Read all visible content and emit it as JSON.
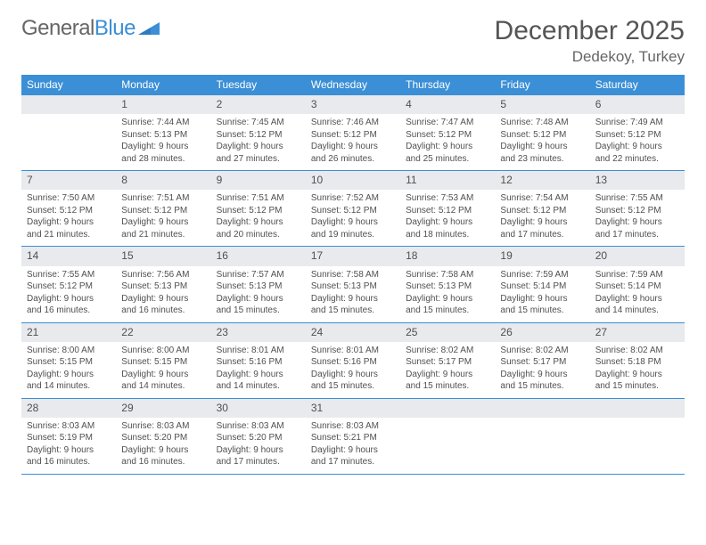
{
  "logo": {
    "part1": "General",
    "part2": "Blue"
  },
  "title": "December 2025",
  "subtitle": "Dedekoy, Turkey",
  "colors": {
    "accent": "#3b8fd6",
    "day_num_bg": "#e8eaed",
    "text_dark": "#333333",
    "text_gray": "#505050",
    "page_bg": "#ffffff"
  },
  "typography": {
    "title_fontsize": 30,
    "subtitle_fontsize": 17,
    "dow_fontsize": 12,
    "daynum_fontsize": 12,
    "body_fontsize": 10,
    "font_family": "Arial"
  },
  "days_of_week": [
    "Sunday",
    "Monday",
    "Tuesday",
    "Wednesday",
    "Thursday",
    "Friday",
    "Saturday"
  ],
  "weeks": [
    [
      null,
      {
        "n": "1",
        "sunrise": "Sunrise: 7:44 AM",
        "sunset": "Sunset: 5:13 PM",
        "d1": "Daylight: 9 hours",
        "d2": "and 28 minutes."
      },
      {
        "n": "2",
        "sunrise": "Sunrise: 7:45 AM",
        "sunset": "Sunset: 5:12 PM",
        "d1": "Daylight: 9 hours",
        "d2": "and 27 minutes."
      },
      {
        "n": "3",
        "sunrise": "Sunrise: 7:46 AM",
        "sunset": "Sunset: 5:12 PM",
        "d1": "Daylight: 9 hours",
        "d2": "and 26 minutes."
      },
      {
        "n": "4",
        "sunrise": "Sunrise: 7:47 AM",
        "sunset": "Sunset: 5:12 PM",
        "d1": "Daylight: 9 hours",
        "d2": "and 25 minutes."
      },
      {
        "n": "5",
        "sunrise": "Sunrise: 7:48 AM",
        "sunset": "Sunset: 5:12 PM",
        "d1": "Daylight: 9 hours",
        "d2": "and 23 minutes."
      },
      {
        "n": "6",
        "sunrise": "Sunrise: 7:49 AM",
        "sunset": "Sunset: 5:12 PM",
        "d1": "Daylight: 9 hours",
        "d2": "and 22 minutes."
      }
    ],
    [
      {
        "n": "7",
        "sunrise": "Sunrise: 7:50 AM",
        "sunset": "Sunset: 5:12 PM",
        "d1": "Daylight: 9 hours",
        "d2": "and 21 minutes."
      },
      {
        "n": "8",
        "sunrise": "Sunrise: 7:51 AM",
        "sunset": "Sunset: 5:12 PM",
        "d1": "Daylight: 9 hours",
        "d2": "and 21 minutes."
      },
      {
        "n": "9",
        "sunrise": "Sunrise: 7:51 AM",
        "sunset": "Sunset: 5:12 PM",
        "d1": "Daylight: 9 hours",
        "d2": "and 20 minutes."
      },
      {
        "n": "10",
        "sunrise": "Sunrise: 7:52 AM",
        "sunset": "Sunset: 5:12 PM",
        "d1": "Daylight: 9 hours",
        "d2": "and 19 minutes."
      },
      {
        "n": "11",
        "sunrise": "Sunrise: 7:53 AM",
        "sunset": "Sunset: 5:12 PM",
        "d1": "Daylight: 9 hours",
        "d2": "and 18 minutes."
      },
      {
        "n": "12",
        "sunrise": "Sunrise: 7:54 AM",
        "sunset": "Sunset: 5:12 PM",
        "d1": "Daylight: 9 hours",
        "d2": "and 17 minutes."
      },
      {
        "n": "13",
        "sunrise": "Sunrise: 7:55 AM",
        "sunset": "Sunset: 5:12 PM",
        "d1": "Daylight: 9 hours",
        "d2": "and 17 minutes."
      }
    ],
    [
      {
        "n": "14",
        "sunrise": "Sunrise: 7:55 AM",
        "sunset": "Sunset: 5:12 PM",
        "d1": "Daylight: 9 hours",
        "d2": "and 16 minutes."
      },
      {
        "n": "15",
        "sunrise": "Sunrise: 7:56 AM",
        "sunset": "Sunset: 5:13 PM",
        "d1": "Daylight: 9 hours",
        "d2": "and 16 minutes."
      },
      {
        "n": "16",
        "sunrise": "Sunrise: 7:57 AM",
        "sunset": "Sunset: 5:13 PM",
        "d1": "Daylight: 9 hours",
        "d2": "and 15 minutes."
      },
      {
        "n": "17",
        "sunrise": "Sunrise: 7:58 AM",
        "sunset": "Sunset: 5:13 PM",
        "d1": "Daylight: 9 hours",
        "d2": "and 15 minutes."
      },
      {
        "n": "18",
        "sunrise": "Sunrise: 7:58 AM",
        "sunset": "Sunset: 5:13 PM",
        "d1": "Daylight: 9 hours",
        "d2": "and 15 minutes."
      },
      {
        "n": "19",
        "sunrise": "Sunrise: 7:59 AM",
        "sunset": "Sunset: 5:14 PM",
        "d1": "Daylight: 9 hours",
        "d2": "and 15 minutes."
      },
      {
        "n": "20",
        "sunrise": "Sunrise: 7:59 AM",
        "sunset": "Sunset: 5:14 PM",
        "d1": "Daylight: 9 hours",
        "d2": "and 14 minutes."
      }
    ],
    [
      {
        "n": "21",
        "sunrise": "Sunrise: 8:00 AM",
        "sunset": "Sunset: 5:15 PM",
        "d1": "Daylight: 9 hours",
        "d2": "and 14 minutes."
      },
      {
        "n": "22",
        "sunrise": "Sunrise: 8:00 AM",
        "sunset": "Sunset: 5:15 PM",
        "d1": "Daylight: 9 hours",
        "d2": "and 14 minutes."
      },
      {
        "n": "23",
        "sunrise": "Sunrise: 8:01 AM",
        "sunset": "Sunset: 5:16 PM",
        "d1": "Daylight: 9 hours",
        "d2": "and 14 minutes."
      },
      {
        "n": "24",
        "sunrise": "Sunrise: 8:01 AM",
        "sunset": "Sunset: 5:16 PM",
        "d1": "Daylight: 9 hours",
        "d2": "and 15 minutes."
      },
      {
        "n": "25",
        "sunrise": "Sunrise: 8:02 AM",
        "sunset": "Sunset: 5:17 PM",
        "d1": "Daylight: 9 hours",
        "d2": "and 15 minutes."
      },
      {
        "n": "26",
        "sunrise": "Sunrise: 8:02 AM",
        "sunset": "Sunset: 5:17 PM",
        "d1": "Daylight: 9 hours",
        "d2": "and 15 minutes."
      },
      {
        "n": "27",
        "sunrise": "Sunrise: 8:02 AM",
        "sunset": "Sunset: 5:18 PM",
        "d1": "Daylight: 9 hours",
        "d2": "and 15 minutes."
      }
    ],
    [
      {
        "n": "28",
        "sunrise": "Sunrise: 8:03 AM",
        "sunset": "Sunset: 5:19 PM",
        "d1": "Daylight: 9 hours",
        "d2": "and 16 minutes."
      },
      {
        "n": "29",
        "sunrise": "Sunrise: 8:03 AM",
        "sunset": "Sunset: 5:20 PM",
        "d1": "Daylight: 9 hours",
        "d2": "and 16 minutes."
      },
      {
        "n": "30",
        "sunrise": "Sunrise: 8:03 AM",
        "sunset": "Sunset: 5:20 PM",
        "d1": "Daylight: 9 hours",
        "d2": "and 17 minutes."
      },
      {
        "n": "31",
        "sunrise": "Sunrise: 8:03 AM",
        "sunset": "Sunset: 5:21 PM",
        "d1": "Daylight: 9 hours",
        "d2": "and 17 minutes."
      },
      null,
      null,
      null
    ]
  ]
}
